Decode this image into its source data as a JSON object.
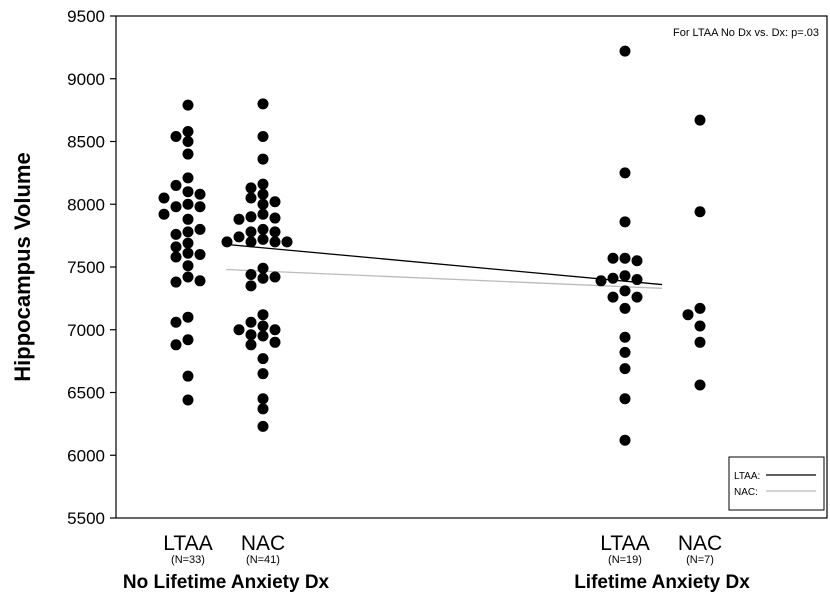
{
  "chart_data": {
    "type": "scatter",
    "ylabel": "Hippocampus Volume",
    "ylim": [
      5500,
      9500
    ],
    "yticks": [
      5500,
      6000,
      6500,
      7000,
      7500,
      8000,
      8500,
      9000,
      9500
    ],
    "annotation": "For LTAA No Dx vs. Dx: p=.03",
    "groups": [
      {
        "key": "no_dx",
        "label": "No Lifetime Anxiety Dx"
      },
      {
        "key": "dx",
        "label": "Lifetime Anxiety Dx"
      }
    ],
    "categories": [
      {
        "label": "LTAA",
        "n_label": "(N=33)",
        "group": "no_dx"
      },
      {
        "label": "NAC",
        "n_label": "(N=41)",
        "group": "no_dx"
      },
      {
        "label": "LTAA",
        "n_label": "(N=19)",
        "group": "dx"
      },
      {
        "label": "NAC",
        "n_label": "(N=7)",
        "group": "dx"
      }
    ],
    "series": [
      {
        "name": "LTAA:",
        "color": "#000000",
        "means": [
          7680,
          7360
        ]
      },
      {
        "name": "NAC:",
        "color": "#bbbbbb",
        "means": [
          7480,
          7330
        ]
      }
    ],
    "points": [
      [
        8790,
        8580,
        8540,
        8500,
        8400,
        8210,
        8150,
        8100,
        8080,
        8000,
        7980,
        7980,
        7880,
        7780,
        7760,
        7690,
        7660,
        7610,
        7580,
        7510,
        7420,
        7380,
        7100,
        7060,
        6920,
        6880,
        6630,
        6440,
        8050,
        7800,
        7600,
        7390,
        7920
      ],
      [
        8800,
        8540,
        8360,
        8160,
        8130,
        8080,
        8050,
        8020,
        8000,
        7920,
        7900,
        7890,
        7880,
        7800,
        7780,
        7780,
        7740,
        7720,
        7700,
        7700,
        7700,
        7700,
        7490,
        7440,
        7420,
        7410,
        7350,
        7120,
        7060,
        7030,
        7000,
        7000,
        6960,
        6950,
        6900,
        6880,
        6770,
        6650,
        6450,
        6370,
        6230
      ],
      [
        9220,
        8250,
        7860,
        7570,
        7570,
        7550,
        7430,
        7410,
        7400,
        7390,
        7310,
        7260,
        7260,
        7170,
        6940,
        6820,
        6690,
        6450,
        6120
      ],
      [
        8670,
        7940,
        7170,
        7120,
        7030,
        6900,
        6560
      ]
    ]
  }
}
